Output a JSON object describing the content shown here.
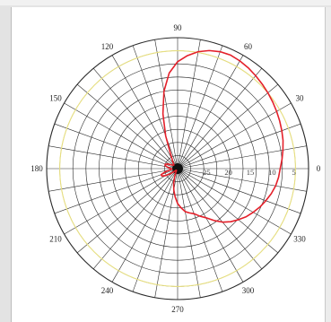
{
  "chart_data": {
    "type": "polar-line",
    "title": "",
    "angular_ticks": [
      "0",
      "30",
      "60",
      "90",
      "120",
      "150",
      "180",
      "210",
      "240",
      "270",
      "300",
      "330"
    ],
    "angular_tick_degrees": [
      0,
      30,
      60,
      90,
      120,
      150,
      180,
      210,
      240,
      270,
      300,
      330
    ],
    "radial_ticks": [
      "5",
      "10",
      "15",
      "20",
      "25"
    ],
    "radial_range": [
      -30,
      0
    ],
    "radial_reference_circle": -3,
    "angular_grid_step_deg": 10,
    "grid": true,
    "colors": {
      "series": "#e4202a",
      "grid": "#2a2a2a",
      "reference_circle": "#e8e080"
    },
    "series": [
      {
        "color": "#e4202a",
        "theta_deg": [
          0,
          5,
          10,
          15,
          20,
          25,
          30,
          35,
          40,
          45,
          50,
          55,
          60,
          65,
          70,
          75,
          80,
          85,
          90,
          95,
          100,
          105,
          110,
          115,
          120,
          125,
          130,
          135,
          140,
          145,
          150,
          155,
          160,
          165,
          170,
          175,
          180,
          185,
          190,
          195,
          200,
          205,
          210,
          215,
          220,
          225,
          230,
          235,
          240,
          245,
          250,
          255,
          260,
          265,
          270,
          275,
          280,
          285,
          290,
          295,
          300,
          305,
          310,
          315,
          320,
          325,
          330,
          335,
          340,
          345,
          350,
          355
        ],
        "r_db": [
          -6.5,
          -6,
          -5.5,
          -5,
          -4.6,
          -4.2,
          -3.8,
          -3.4,
          -3,
          -2.6,
          -2.2,
          -1.8,
          -1.5,
          -1.3,
          -1.5,
          -2,
          -2.8,
          -4,
          -5.5,
          -8,
          -12,
          -17,
          -22,
          -26,
          -27.5,
          -28,
          -28.5,
          -28.8,
          -28.8,
          -28.6,
          -28.2,
          -27.5,
          -27,
          -27,
          -27.5,
          -28,
          -28.5,
          -28.7,
          -28.2,
          -27,
          -26,
          -26,
          -26.8,
          -28,
          -29,
          -29.5,
          -29.5,
          -29.5,
          -29.5,
          -29,
          -28,
          -26.5,
          -25,
          -23.5,
          -22,
          -21,
          -20,
          -19.5,
          -19,
          -18,
          -17,
          -15.5,
          -14,
          -12.8,
          -11.8,
          -10.8,
          -10,
          -9.2,
          -8.5,
          -7.8,
          -7.2,
          -6.8
        ]
      }
    ]
  }
}
